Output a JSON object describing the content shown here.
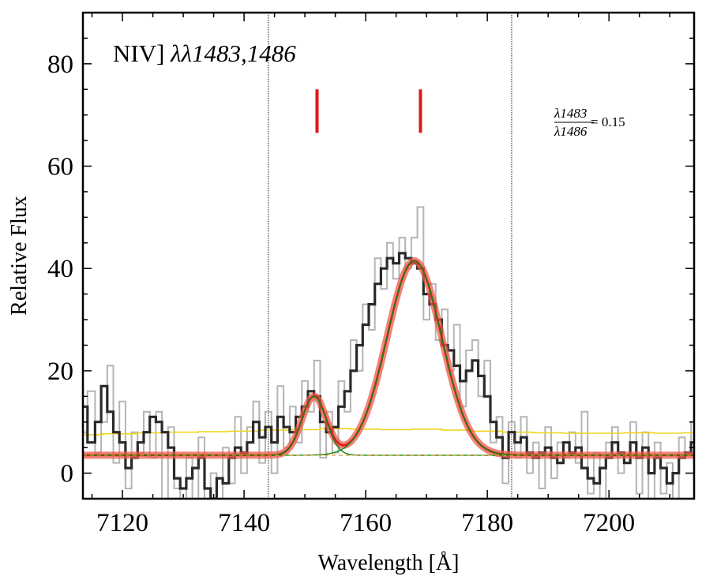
{
  "chart_data": {
    "type": "line",
    "xlabel": "Wavelength [Å]",
    "ylabel": "Relative Flux",
    "xlim": [
      7113.5,
      7214
    ],
    "ylim": [
      -5,
      90
    ],
    "xticks": [
      7120,
      7140,
      7160,
      7180,
      7200
    ],
    "yticks": [
      0,
      20,
      40,
      60,
      80
    ],
    "grid": false,
    "legend": "none",
    "annotations": {
      "line_label_roman": "NIV] ",
      "line_label_italic": "λλ1483,1486",
      "ratio_numerator": "λ1483",
      "ratio_denominator": "λ1486",
      "ratio_value": "= 0.15"
    },
    "vertical_markers": [
      7144,
      7184
    ],
    "line_markers": [
      7152,
      7169
    ],
    "continuum": 3.5,
    "fit_components": [
      {
        "center": 7151.5,
        "amplitude": 11.5,
        "sigma": 2.0
      },
      {
        "center": 7168,
        "amplitude": 38.0,
        "sigma": 4.5
      }
    ],
    "series": [
      {
        "role": "smoothed-spectrum",
        "color": "#2a2a2a",
        "x": [
          7113.5,
          7115,
          7116,
          7117,
          7118,
          7119,
          7120,
          7121,
          7122,
          7123,
          7124,
          7125,
          7126,
          7127,
          7128,
          7129,
          7130,
          7131,
          7132,
          7133,
          7134,
          7135,
          7136,
          7137,
          7138,
          7139,
          7140,
          7141,
          7142,
          7143,
          7144,
          7145,
          7146,
          7147,
          7148,
          7149,
          7150,
          7151,
          7152,
          7153,
          7154,
          7155,
          7156,
          7157,
          7158,
          7159,
          7160,
          7161,
          7162,
          7163,
          7164,
          7165,
          7166,
          7167,
          7168,
          7169,
          7170,
          7171,
          7172,
          7173,
          7174,
          7175,
          7176,
          7177,
          7178,
          7179,
          7180,
          7181,
          7182,
          7183,
          7184,
          7185,
          7186,
          7187,
          7188,
          7189,
          7190,
          7191,
          7192,
          7193,
          7194,
          7195,
          7196,
          7197,
          7198,
          7199,
          7200,
          7201,
          7202,
          7203,
          7204,
          7205,
          7206,
          7207,
          7208,
          7209,
          7210,
          7211,
          7212,
          7213,
          7214
        ],
        "y": [
          13,
          6,
          10,
          17,
          12,
          8,
          6,
          1,
          3,
          6,
          8,
          11,
          10,
          8,
          5,
          -1,
          -3,
          -1,
          1,
          3,
          -3,
          -5,
          -1,
          -2,
          3,
          5,
          4,
          6,
          10,
          7,
          9,
          6,
          11,
          9,
          8,
          11,
          13,
          16,
          15,
          10,
          8,
          9,
          13,
          16,
          20,
          25,
          29,
          33,
          37,
          40,
          42,
          41,
          43,
          42,
          41,
          40,
          35,
          33,
          30,
          25,
          24,
          21,
          18,
          20,
          22,
          19,
          15,
          10,
          7,
          3,
          8,
          6,
          7,
          4,
          3,
          4,
          5,
          3,
          2,
          6,
          4,
          5,
          1,
          -1,
          -2,
          1,
          3,
          6,
          4,
          2,
          6,
          3,
          5,
          0,
          3,
          1,
          -2,
          0,
          3,
          4,
          6
        ]
      },
      {
        "role": "raw-spectrum",
        "color": "#b4b4b4",
        "x": [
          7113.5,
          7115,
          7116,
          7117,
          7118,
          7119,
          7120,
          7121,
          7122,
          7123,
          7124,
          7125,
          7126,
          7127,
          7128,
          7129,
          7130,
          7131,
          7132,
          7133,
          7134,
          7135,
          7136,
          7137,
          7138,
          7139,
          7140,
          7141,
          7142,
          7143,
          7144,
          7145,
          7146,
          7147,
          7148,
          7149,
          7150,
          7151,
          7152,
          7153,
          7154,
          7155,
          7156,
          7157,
          7158,
          7159,
          7160,
          7161,
          7162,
          7163,
          7164,
          7165,
          7166,
          7167,
          7168,
          7169,
          7170,
          7171,
          7172,
          7173,
          7174,
          7175,
          7176,
          7177,
          7178,
          7179,
          7180,
          7181,
          7182,
          7183,
          7184,
          7185,
          7186,
          7187,
          7188,
          7189,
          7190,
          7191,
          7192,
          7193,
          7194,
          7195,
          7196,
          7197,
          7198,
          7199,
          7200,
          7201,
          7202,
          7203,
          7204,
          7205,
          7206,
          7207,
          7208,
          7209,
          7210,
          7211,
          7212,
          7213,
          7214
        ],
        "y": [
          8,
          16,
          4,
          10,
          21,
          2,
          14,
          -3,
          8,
          4,
          12,
          3,
          12,
          -6,
          9,
          -3,
          -10,
          3,
          -5,
          7,
          -8,
          0,
          -9,
          5,
          -2,
          11,
          0,
          9,
          14,
          2,
          12,
          0,
          17,
          5,
          13,
          6,
          18,
          12,
          22,
          3,
          12,
          4,
          18,
          12,
          26,
          20,
          33,
          28,
          42,
          36,
          45,
          38,
          46,
          40,
          46,
          52,
          30,
          37,
          26,
          32,
          20,
          29,
          13,
          24,
          26,
          15,
          22,
          6,
          11,
          -2,
          10,
          3,
          11,
          0,
          6,
          -3,
          9,
          -1,
          6,
          3,
          8,
          2,
          12,
          -4,
          4,
          -5,
          6,
          9,
          0,
          2,
          10,
          -4,
          8,
          -5,
          6,
          -4,
          2,
          -6,
          7,
          4,
          10
        ]
      },
      {
        "role": "error-spectrum",
        "color": "#f0d520",
        "x": [
          7113.5,
          7120,
          7125,
          7130,
          7135,
          7140,
          7145,
          7150,
          7155,
          7160,
          7165,
          7170,
          7175,
          7180,
          7185,
          7190,
          7195,
          7200,
          7205,
          7210,
          7214
        ],
        "y": [
          7.5,
          7.7,
          7.9,
          8.0,
          8.1,
          8.2,
          8.4,
          8.5,
          8.7,
          8.6,
          8.5,
          8.6,
          8.4,
          8.2,
          8.0,
          7.9,
          7.8,
          7.8,
          7.9,
          7.8,
          7.9
        ]
      }
    ]
  }
}
